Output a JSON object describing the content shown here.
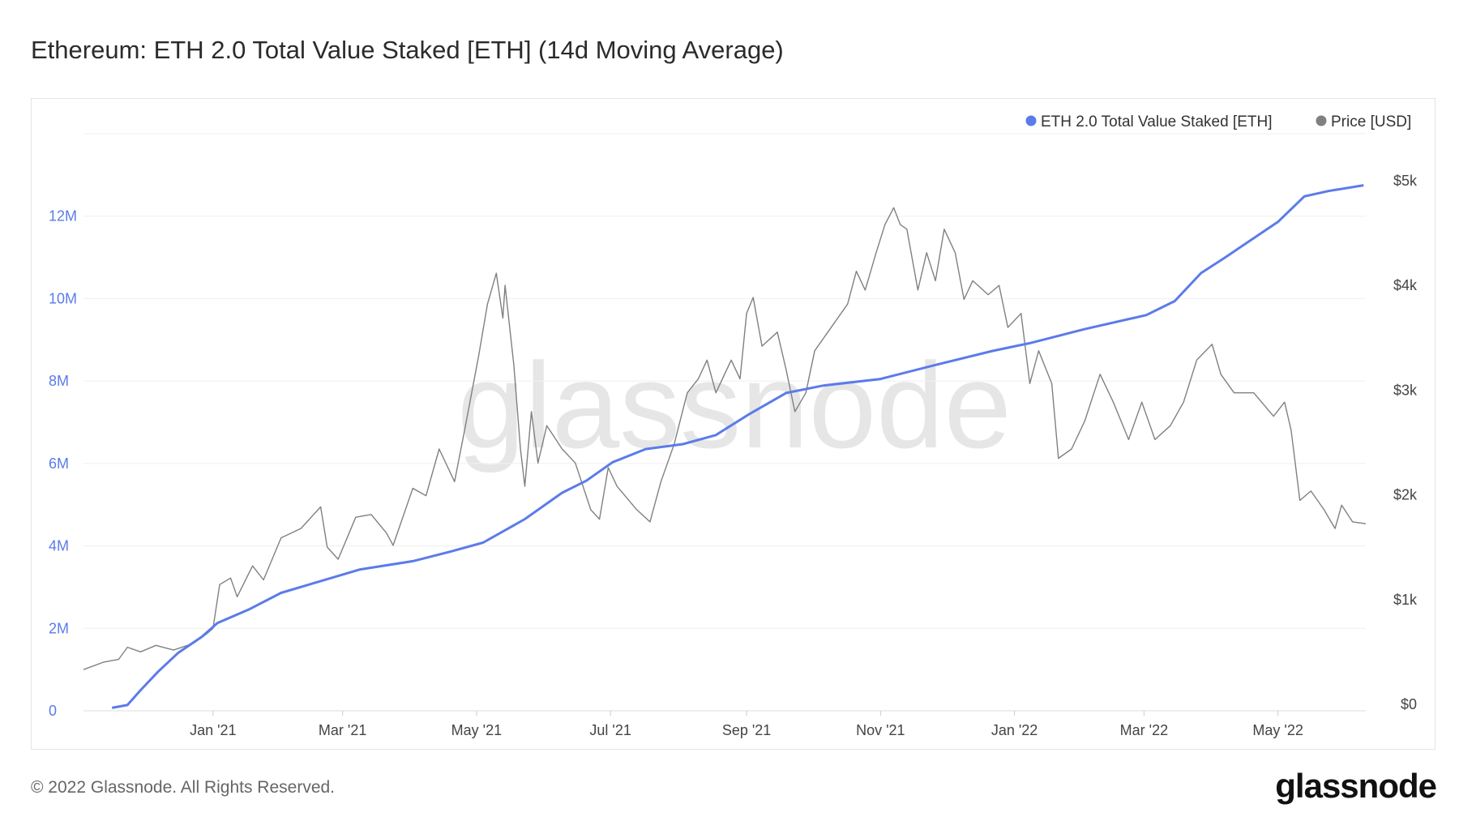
{
  "title": "Ethereum: ETH 2.0 Total Value Staked [ETH] (14d Moving Average)",
  "footer": {
    "copyright": "© 2022 Glassnode. All Rights Reserved.",
    "logo": "glassnode"
  },
  "watermark": "glassnode",
  "chart_data": {
    "type": "line",
    "title": "Ethereum: ETH 2.0 Total Value Staked [ETH] (14d Moving Average)",
    "legend_placement": "top-right",
    "grid": "horizontal",
    "x_range": [
      "2020-11-03",
      "2022-06-10"
    ],
    "x_ticks": [
      {
        "date": "2021-01-01",
        "label": "Jan '21"
      },
      {
        "date": "2021-03-01",
        "label": "Mar '21"
      },
      {
        "date": "2021-05-01",
        "label": "May '21"
      },
      {
        "date": "2021-07-01",
        "label": "Jul '21"
      },
      {
        "date": "2021-09-01",
        "label": "Sep '21"
      },
      {
        "date": "2021-11-01",
        "label": "Nov '21"
      },
      {
        "date": "2022-01-01",
        "label": "Jan '22"
      },
      {
        "date": "2022-03-01",
        "label": "Mar '22"
      },
      {
        "date": "2022-05-01",
        "label": "May '22"
      }
    ],
    "y_left": {
      "range": [
        0,
        14000000
      ],
      "ticks": [
        {
          "v": 0,
          "label": "0"
        },
        {
          "v": 2000000,
          "label": "2M"
        },
        {
          "v": 4000000,
          "label": "4M"
        },
        {
          "v": 6000000,
          "label": "6M"
        },
        {
          "v": 8000000,
          "label": "8M"
        },
        {
          "v": 10000000,
          "label": "10M"
        },
        {
          "v": 12000000,
          "label": "12M"
        }
      ],
      "color": "#5b7be9"
    },
    "y_right": {
      "range": [
        0,
        5000
      ],
      "scale": "linear",
      "ticks": [
        {
          "v": 0,
          "label": "$0"
        },
        {
          "v": 1000,
          "label": "$1k"
        },
        {
          "v": 2000,
          "label": "$2k"
        },
        {
          "v": 3000,
          "label": "$3k"
        },
        {
          "v": 4000,
          "label": "$4k"
        },
        {
          "v": 5000,
          "label": "$5k"
        }
      ],
      "color": "#555555"
    },
    "series": [
      {
        "name": "ETH 2.0 Total Value Staked [ETH]",
        "axis": "left",
        "color": "#5b7be9",
        "points": [
          [
            "2020-11-16",
            70000
          ],
          [
            "2020-11-23",
            140000
          ],
          [
            "2020-11-29",
            500000
          ],
          [
            "2020-12-07",
            950000
          ],
          [
            "2020-12-16",
            1400000
          ],
          [
            "2020-12-27",
            1800000
          ],
          [
            "2021-01-03",
            2130000
          ],
          [
            "2021-01-17",
            2450000
          ],
          [
            "2021-02-01",
            2860000
          ],
          [
            "2021-02-18",
            3130000
          ],
          [
            "2021-03-09",
            3430000
          ],
          [
            "2021-04-02",
            3630000
          ],
          [
            "2021-04-19",
            3860000
          ],
          [
            "2021-05-04",
            4080000
          ],
          [
            "2021-05-23",
            4650000
          ],
          [
            "2021-06-09",
            5290000
          ],
          [
            "2021-06-20",
            5580000
          ],
          [
            "2021-07-02",
            6030000
          ],
          [
            "2021-07-17",
            6350000
          ],
          [
            "2021-08-03",
            6470000
          ],
          [
            "2021-08-18",
            6690000
          ],
          [
            "2021-09-02",
            7190000
          ],
          [
            "2021-09-19",
            7710000
          ],
          [
            "2021-10-06",
            7890000
          ],
          [
            "2021-11-01",
            8050000
          ],
          [
            "2021-11-26",
            8390000
          ],
          [
            "2021-12-22",
            8730000
          ],
          [
            "2022-01-08",
            8920000
          ],
          [
            "2022-02-02",
            9260000
          ],
          [
            "2022-03-02",
            9600000
          ],
          [
            "2022-03-15",
            9940000
          ],
          [
            "2022-03-27",
            10620000
          ],
          [
            "2022-04-07",
            11000000
          ],
          [
            "2022-05-01",
            11860000
          ],
          [
            "2022-05-13",
            12480000
          ],
          [
            "2022-05-24",
            12610000
          ],
          [
            "2022-06-09",
            12750000
          ]
        ]
      },
      {
        "name": "Price [USD]",
        "axis": "right",
        "color": "#808080",
        "points": [
          [
            "2020-11-03",
            393
          ],
          [
            "2020-11-12",
            464
          ],
          [
            "2020-11-19",
            491
          ],
          [
            "2020-11-23",
            607
          ],
          [
            "2020-11-29",
            563
          ],
          [
            "2020-12-06",
            625
          ],
          [
            "2020-12-14",
            580
          ],
          [
            "2020-12-23",
            643
          ],
          [
            "2020-12-29",
            732
          ],
          [
            "2021-01-01",
            786
          ],
          [
            "2021-01-04",
            1205
          ],
          [
            "2021-01-09",
            1268
          ],
          [
            "2021-01-12",
            1089
          ],
          [
            "2021-01-19",
            1384
          ],
          [
            "2021-01-24",
            1250
          ],
          [
            "2021-02-01",
            1652
          ],
          [
            "2021-02-10",
            1741
          ],
          [
            "2021-02-19",
            1947
          ],
          [
            "2021-02-22",
            1563
          ],
          [
            "2021-02-27",
            1447
          ],
          [
            "2021-03-07",
            1848
          ],
          [
            "2021-03-14",
            1875
          ],
          [
            "2021-03-21",
            1697
          ],
          [
            "2021-03-24",
            1580
          ],
          [
            "2021-04-02",
            2125
          ],
          [
            "2021-04-08",
            2054
          ],
          [
            "2021-04-14",
            2500
          ],
          [
            "2021-04-21",
            2188
          ],
          [
            "2021-04-26",
            2724
          ],
          [
            "2021-05-02",
            3393
          ],
          [
            "2021-05-06",
            3884
          ],
          [
            "2021-05-10",
            4179
          ],
          [
            "2021-05-13",
            3750
          ],
          [
            "2021-05-14",
            4063
          ],
          [
            "2021-05-18",
            3304
          ],
          [
            "2021-05-21",
            2500
          ],
          [
            "2021-05-23",
            2143
          ],
          [
            "2021-05-26",
            2857
          ],
          [
            "2021-05-29",
            2366
          ],
          [
            "2021-06-02",
            2723
          ],
          [
            "2021-06-09",
            2500
          ],
          [
            "2021-06-15",
            2366
          ],
          [
            "2021-06-22",
            1920
          ],
          [
            "2021-06-26",
            1830
          ],
          [
            "2021-06-30",
            2322
          ],
          [
            "2021-07-04",
            2143
          ],
          [
            "2021-07-13",
            1920
          ],
          [
            "2021-07-19",
            1804
          ],
          [
            "2021-07-24",
            2188
          ],
          [
            "2021-07-30",
            2545
          ],
          [
            "2021-08-05",
            3036
          ],
          [
            "2021-08-10",
            3170
          ],
          [
            "2021-08-14",
            3349
          ],
          [
            "2021-08-18",
            3036
          ],
          [
            "2021-08-25",
            3349
          ],
          [
            "2021-08-29",
            3170
          ],
          [
            "2021-09-01",
            3795
          ],
          [
            "2021-09-04",
            3947
          ],
          [
            "2021-09-08",
            3482
          ],
          [
            "2021-09-15",
            3616
          ],
          [
            "2021-09-19",
            3259
          ],
          [
            "2021-09-23",
            2857
          ],
          [
            "2021-09-28",
            3036
          ],
          [
            "2021-10-02",
            3438
          ],
          [
            "2021-10-08",
            3616
          ],
          [
            "2021-10-17",
            3884
          ],
          [
            "2021-10-21",
            4197
          ],
          [
            "2021-10-25",
            4018
          ],
          [
            "2021-10-30",
            4375
          ],
          [
            "2021-11-03",
            4643
          ],
          [
            "2021-11-07",
            4804
          ],
          [
            "2021-11-10",
            4643
          ],
          [
            "2021-11-13",
            4599
          ],
          [
            "2021-11-18",
            4018
          ],
          [
            "2021-11-22",
            4375
          ],
          [
            "2021-11-26",
            4107
          ],
          [
            "2021-11-30",
            4599
          ],
          [
            "2021-12-05",
            4375
          ],
          [
            "2021-12-09",
            3929
          ],
          [
            "2021-12-13",
            4107
          ],
          [
            "2021-12-20",
            3974
          ],
          [
            "2021-12-25",
            4063
          ],
          [
            "2021-12-29",
            3661
          ],
          [
            "2022-01-04",
            3795
          ],
          [
            "2022-01-08",
            3125
          ],
          [
            "2022-01-12",
            3438
          ],
          [
            "2022-01-18",
            3125
          ],
          [
            "2022-01-21",
            2411
          ],
          [
            "2022-01-27",
            2500
          ],
          [
            "2022-02-02",
            2768
          ],
          [
            "2022-02-09",
            3214
          ],
          [
            "2022-02-15",
            2947
          ],
          [
            "2022-02-22",
            2590
          ],
          [
            "2022-02-28",
            2947
          ],
          [
            "2022-03-06",
            2590
          ],
          [
            "2022-03-13",
            2723
          ],
          [
            "2022-03-19",
            2947
          ],
          [
            "2022-03-25",
            3349
          ],
          [
            "2022-04-01",
            3500
          ],
          [
            "2022-04-05",
            3214
          ],
          [
            "2022-04-11",
            3036
          ],
          [
            "2022-04-20",
            3036
          ],
          [
            "2022-04-29",
            2813
          ],
          [
            "2022-05-04",
            2947
          ],
          [
            "2022-05-07",
            2679
          ],
          [
            "2022-05-11",
            2009
          ],
          [
            "2022-05-16",
            2098
          ],
          [
            "2022-05-22",
            1920
          ],
          [
            "2022-05-27",
            1741
          ],
          [
            "2022-05-30",
            1964
          ],
          [
            "2022-06-04",
            1804
          ],
          [
            "2022-06-10",
            1786
          ]
        ]
      }
    ]
  }
}
